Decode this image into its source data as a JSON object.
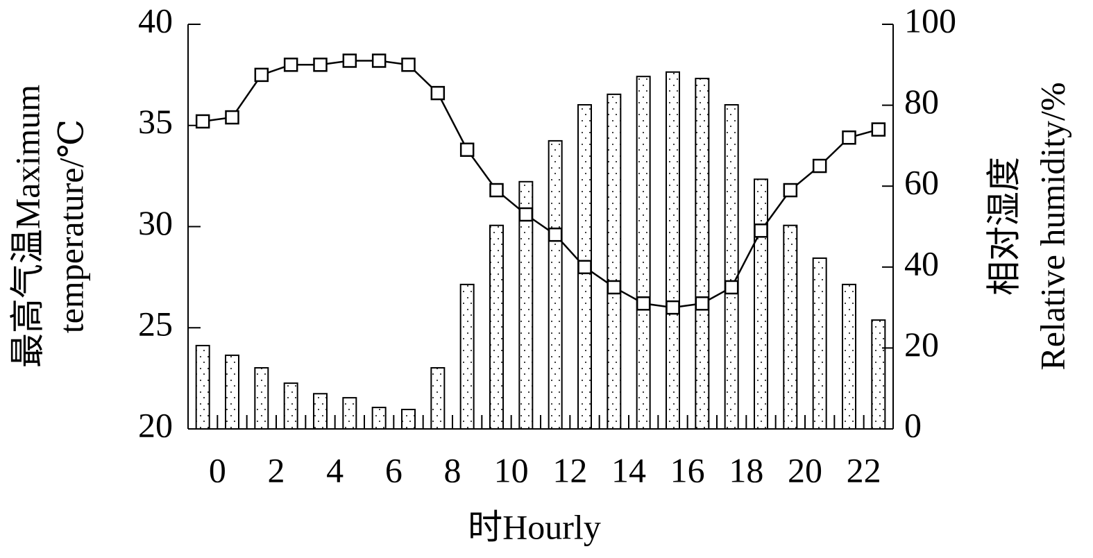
{
  "chart_data": {
    "type": "combo",
    "xlabel": "时Hourly",
    "ylabel": [
      "最高气温Maximum",
      "temperature/℃"
    ],
    "y2label": [
      "相对湿度",
      "Relative humidity/%"
    ],
    "categories": [
      "0",
      null,
      "2",
      null,
      "4",
      null,
      "6",
      null,
      "8",
      null,
      "10",
      null,
      "12",
      null,
      "14",
      null,
      "16",
      null,
      "18",
      null,
      "20",
      null,
      "22",
      null
    ],
    "series": [
      {
        "name": "Maximum temperature",
        "type": "line",
        "axis": "y",
        "color": "#000000",
        "values": [
          35.2,
          35.4,
          37.5,
          38.0,
          38.0,
          38.2,
          38.2,
          38.0,
          36.6,
          33.8,
          31.8,
          30.6,
          29.6,
          28.0,
          27.0,
          26.2,
          26.0,
          26.2,
          27.0,
          29.8,
          31.8,
          33.0,
          34.4,
          34.8
        ]
      },
      {
        "name": "Relative humidity",
        "type": "bar",
        "axis": "y2",
        "color": "#000000",
        "values": [
          20.6,
          18.2,
          15.1,
          11.3,
          8.7,
          7.7,
          5.3,
          4.8,
          15.1,
          35.7,
          50.3,
          61.1,
          71.2,
          80.1,
          82.7,
          87.1,
          88.2,
          86.6,
          80.1,
          61.7,
          50.3,
          42.2,
          35.7,
          26.9
        ]
      }
    ],
    "ylim": [
      20,
      40
    ],
    "yticks": [
      20,
      25,
      30,
      35,
      40
    ],
    "y2lim": [
      0,
      100
    ],
    "y2ticks": [
      0,
      20,
      40,
      60,
      80,
      100
    ],
    "grid": false
  }
}
